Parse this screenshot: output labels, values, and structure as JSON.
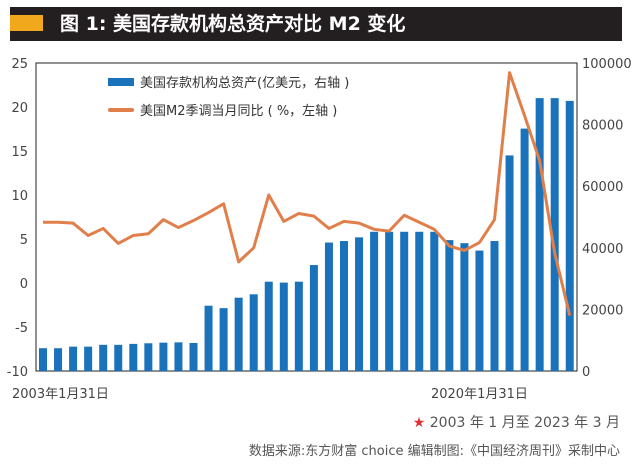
{
  "title": "图 1: 美国存款机构总资产对比 M2 变化",
  "colors": {
    "title_bg": "#231f20",
    "title_mark": "#f2a81d",
    "bars": "#1a72bb",
    "line": "#e07f4a",
    "star": "#e03030"
  },
  "chart_data": {
    "type": "bar+line",
    "legend_position": "top-left",
    "grid": false,
    "x_tick_labels": [
      {
        "index": 0,
        "label": "2003年1月31日"
      },
      {
        "index": 29,
        "label": "2020年1月31日"
      }
    ],
    "y_left": {
      "range": [
        -10,
        25
      ],
      "ticks": [
        "25",
        "20",
        "15",
        "10",
        "5",
        "0",
        "-5",
        "-10"
      ]
    },
    "y_right": {
      "range": [
        0,
        100000
      ],
      "ticks": [
        "100000",
        "80000",
        "60000",
        "40000",
        "20000",
        "0"
      ]
    },
    "series": [
      {
        "name": "美国存款机构总资产(亿美元，右轴 )",
        "type": "bar",
        "axis": "right",
        "values": [
          7400,
          7400,
          7900,
          7900,
          8500,
          8500,
          8800,
          9000,
          9200,
          9300,
          9100,
          21200,
          20400,
          23800,
          24900,
          29000,
          28700,
          29000,
          34400,
          41700,
          42200,
          43400,
          45200,
          45200,
          45200,
          45200,
          45200,
          42500,
          41500,
          39100,
          42200,
          70000,
          78700,
          88600,
          88600,
          87700
        ]
      },
      {
        "name": "美国M2季调当月同比 ( %，左轴 )",
        "type": "line",
        "axis": "left",
        "values": [
          6.9,
          6.9,
          6.8,
          5.4,
          6.2,
          4.5,
          5.4,
          5.6,
          7.2,
          6.3,
          7.1,
          8.0,
          9.0,
          2.4,
          4.0,
          10.0,
          7.0,
          7.9,
          7.6,
          6.2,
          7.0,
          6.8,
          6.1,
          5.9,
          7.7,
          6.9,
          6.1,
          4.2,
          3.7,
          4.6,
          7.2,
          23.9,
          19.0,
          13.9,
          3.4,
          -3.7
        ]
      }
    ]
  },
  "footer": {
    "range_star": "★",
    "range": " 2003 年 1 月至 2023 年 3 月",
    "source": "数据来源:东方财富 choice  编辑制图:《中国经济周刊》采制中心"
  }
}
